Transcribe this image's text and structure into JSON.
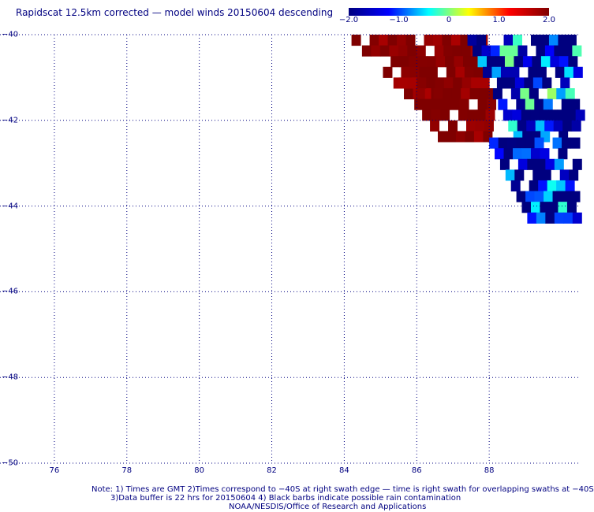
{
  "title": "Rapidscat 12.5km corrected — model winds 20150604 descending",
  "colorbar": {
    "min": -2.0,
    "max": 2.0,
    "ticks": [
      {
        "value": -2.0,
        "label": "−2.0"
      },
      {
        "value": -1.0,
        "label": "−1.0"
      },
      {
        "value": 0,
        "label": "0"
      },
      {
        "value": 1.0,
        "label": "1.0"
      },
      {
        "value": 2.0,
        "label": "2.0"
      }
    ],
    "stops": [
      "#00007f",
      "#0000ff",
      "#00ffff",
      "#ffff00",
      "#ff0000",
      "#7f0000"
    ]
  },
  "map": {
    "lat_range": [
      -50,
      -40
    ],
    "lon_range": [
      74.5,
      90.5
    ],
    "lat_ticks": [
      {
        "value": -40,
        "label": "−40"
      },
      {
        "value": -42,
        "label": "−42"
      },
      {
        "value": -44,
        "label": "−44"
      },
      {
        "value": -46,
        "label": "−46"
      },
      {
        "value": -48,
        "label": "−48"
      },
      {
        "value": -50,
        "label": "−50"
      }
    ],
    "lon_ticks": [
      {
        "value": 76,
        "label": "76"
      },
      {
        "value": 78,
        "label": "78"
      },
      {
        "value": 80,
        "label": "80"
      },
      {
        "value": 82,
        "label": "82"
      },
      {
        "value": 84,
        "label": "84"
      },
      {
        "value": 86,
        "label": "86"
      },
      {
        "value": 88,
        "label": "88"
      }
    ],
    "grid": "dotted",
    "cell_size_deg": 0.125,
    "swath_regions": [
      {
        "lon_start": 84.2,
        "lat_top": -40.0,
        "lat_bottom": -41.4,
        "lon_end": 87.8,
        "value": 2.0
      },
      {
        "lon_start": 85.5,
        "lat_top": -41.0,
        "lat_bottom": -42.3,
        "lon_end": 88.0,
        "value": 2.0
      },
      {
        "lon_start": 87.4,
        "lat_top": -40.0,
        "lat_bottom": -42.4,
        "lon_end": 90.4,
        "value": -1.5
      },
      {
        "lon_start": 88.0,
        "lat_top": -42.4,
        "lat_bottom": -44.2,
        "lon_end": 90.4,
        "value": -1.8
      }
    ]
  },
  "notes": {
    "line1": "Note: 1) Times are GMT 2)Times correspond to −40S at right swath edge — time is right swath for overlapping swaths at −40S",
    "line2": "3)Data buffer is 22 hrs for 20150604 4) Black barbs indicate possible rain contamination",
    "line3": "NOAA/NESDIS/Office of Research and Applications"
  }
}
